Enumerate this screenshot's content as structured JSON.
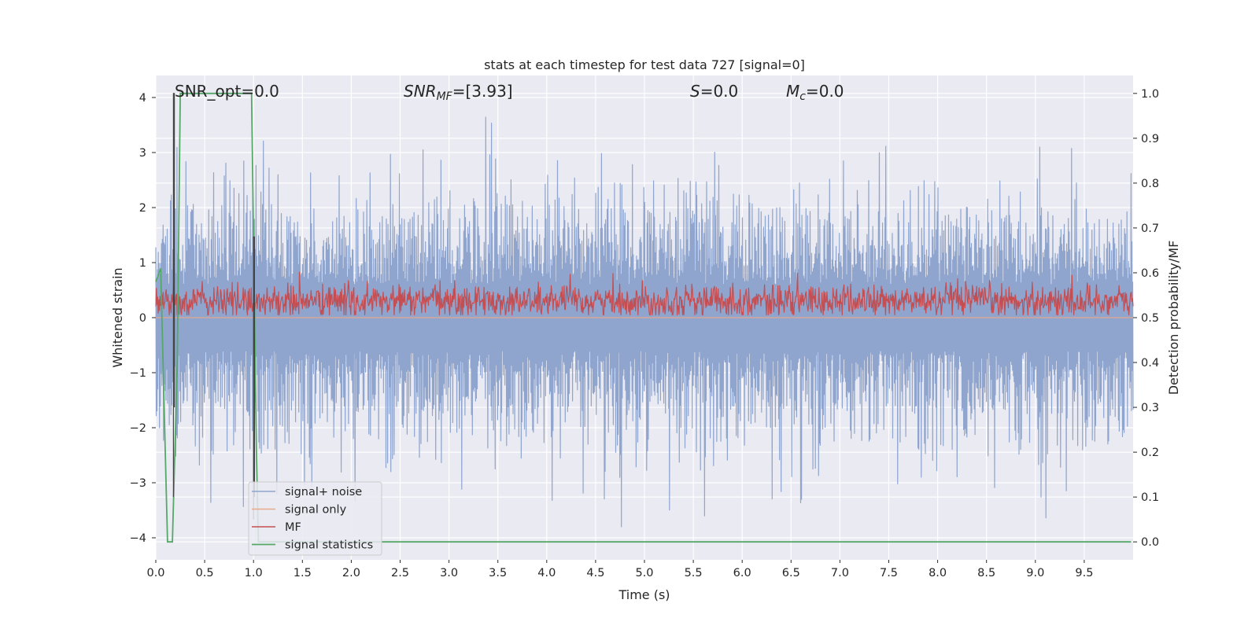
{
  "chart_data": {
    "type": "line",
    "title": "stats at each timestep for test data 727 [signal=0]",
    "xlabel": "Time (s)",
    "ylabel": "Whitened strain",
    "y2label": "Detection probability/MF",
    "xlim": [
      0.0,
      10.0
    ],
    "ylim": [
      -4.4,
      4.4
    ],
    "y2lim": [
      -0.04,
      1.04
    ],
    "x_ticks": [
      0.0,
      0.5,
      1.0,
      1.5,
      2.0,
      2.5,
      3.0,
      3.5,
      4.0,
      4.5,
      5.0,
      5.5,
      6.0,
      6.5,
      7.0,
      7.5,
      8.0,
      8.5,
      9.0,
      9.5
    ],
    "x_tick_labels": [
      "0.0",
      "0.5",
      "1.0",
      "1.5",
      "2.0",
      "2.5",
      "3.0",
      "3.5",
      "4.0",
      "4.5",
      "5.0",
      "5.5",
      "6.0",
      "6.5",
      "7.0",
      "7.5",
      "8.0",
      "8.5",
      "9.0",
      "9.5"
    ],
    "y_ticks": [
      -4,
      -3,
      -2,
      -1,
      0,
      1,
      2,
      3,
      4
    ],
    "y_tick_labels": [
      "−4",
      "−3",
      "−2",
      "−1",
      "0",
      "1",
      "2",
      "3",
      "4"
    ],
    "y2_ticks": [
      0.0,
      0.1,
      0.2,
      0.3,
      0.4,
      0.5,
      0.6,
      0.7,
      0.8,
      0.9,
      1.0
    ],
    "y2_tick_labels": [
      "0.0",
      "0.1",
      "0.2",
      "0.3",
      "0.4",
      "0.5",
      "0.6",
      "0.7",
      "0.8",
      "0.9",
      "1.0"
    ],
    "grid": true,
    "legend_position": "lower-left",
    "annotations": [
      {
        "id": "snr-opt",
        "parts": [
          {
            "t": "SNR_opt=0.0",
            "style": "normal"
          }
        ]
      },
      {
        "id": "snr-mf",
        "parts": [
          {
            "t": "SNR",
            "style": "italic"
          },
          {
            "t": "MF",
            "style": "italic-sub"
          },
          {
            "t": "=[3.93]",
            "style": "normal"
          }
        ]
      },
      {
        "id": "s-value",
        "parts": [
          {
            "t": "S",
            "style": "italic"
          },
          {
            "t": "=0.0",
            "style": "normal"
          }
        ]
      },
      {
        "id": "mc-value",
        "parts": [
          {
            "t": "M",
            "style": "italic"
          },
          {
            "t": "c",
            "style": "italic-sub"
          },
          {
            "t": "=0.0",
            "style": "normal"
          }
        ]
      }
    ],
    "series": [
      {
        "name": "signal+ noise",
        "color": "#8fa5ce",
        "axis": "left",
        "kind": "noise",
        "amplitude_typical": 1.5,
        "range": [
          -3.8,
          4.05
        ]
      },
      {
        "name": "signal only",
        "color": "#e8a88a",
        "axis": "left",
        "kind": "flat",
        "value": 0.0
      },
      {
        "name": "MF",
        "color": "#c44e52",
        "axis": "left",
        "kind": "noise",
        "range": [
          0.05,
          1.0
        ],
        "mean": 0.3
      },
      {
        "name": "signal statistics",
        "color": "#55a868",
        "axis": "right",
        "x": [
          0.0,
          0.05,
          0.12,
          0.17,
          0.22,
          0.25,
          0.98,
          1.03,
          1.05,
          9.98
        ],
        "y": [
          0.58,
          0.61,
          0.0,
          0.0,
          0.4,
          1.0,
          1.0,
          0.2,
          0.0,
          0.0
        ]
      }
    ],
    "markers": [
      {
        "color": "#444444",
        "axis": "right",
        "x": [
          0.18,
          0.18,
          0.19,
          0.19
        ],
        "y": [
          0.1,
          1.0,
          1.0,
          0.3
        ]
      },
      {
        "color": "#444444",
        "axis": "right",
        "x": [
          1.0,
          1.0,
          1.01,
          1.01
        ],
        "y": [
          0.05,
          0.68,
          0.68,
          0.1
        ]
      }
    ]
  }
}
